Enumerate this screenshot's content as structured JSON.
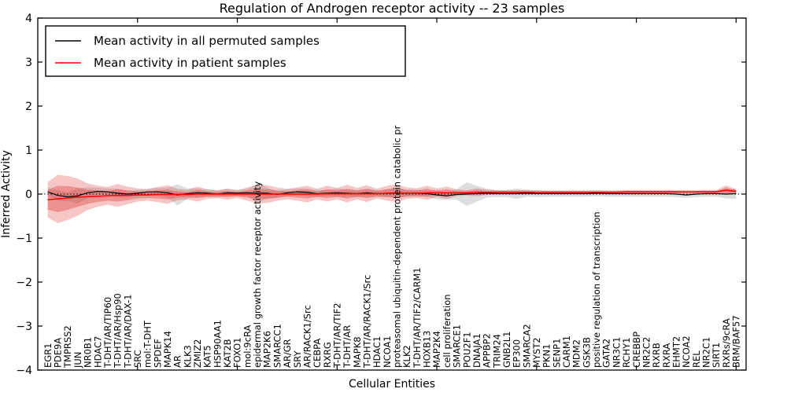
{
  "figure": {
    "background": "#ffffff"
  },
  "chart_data": {
    "type": "line",
    "title": "Regulation of Androgen receptor activity -- 23 samples",
    "xlabel": "Cellular Entities",
    "ylabel": "Inferred Activity",
    "ylim": [
      -4,
      4
    ],
    "yticks": [
      -4,
      -3,
      -2,
      -1,
      0,
      1,
      2,
      3,
      4
    ],
    "xlim": [
      0,
      71
    ],
    "xticks": [
      10,
      20,
      30,
      40,
      50,
      60,
      70
    ],
    "grid": false,
    "zero_line": {
      "y": 0,
      "color": "#000000",
      "style": "dotted"
    },
    "legend": {
      "position": "upper left",
      "entries": [
        {
          "label": "Mean activity in all permuted samples",
          "color": "#000000"
        },
        {
          "label": "Mean activity in patient samples",
          "color": "#ff0000"
        }
      ]
    },
    "categories": [
      "EGR1",
      "PDE9A",
      "TMPRSS2",
      "JUN",
      "NR0B1",
      "HDAC7",
      "T-DHT/AR/TIP60",
      "T-DHT/AR/Hsp90",
      "T-DHT/AR/DAX-1",
      "SRC",
      "mol:T-DHT",
      "SPDEF",
      "MAPK14",
      "AR",
      "KLK3",
      "ZMIZ2",
      "KAT5",
      "HSP90AA1",
      "KAT2B",
      "FOXO1",
      "mol:9cRA",
      "epidermal growth factor receptor activity",
      "MAP2K6",
      "SMARCC1",
      "AR/GR",
      "SRY",
      "AR/RACK1/Src",
      "CEBPA",
      "RXRG",
      "T-DHT/AR/TIF2",
      "T-DHT/AR",
      "MAPK8",
      "T-DHT/AR/RACK1/Src",
      "HDAC1",
      "NCOA1",
      "proteasomal ubiquitin-dependent protein catabolic pr",
      "KLK2",
      "T-DHT/AR/TIF2/CARM1",
      "HOXB13",
      "MAP2K4",
      "cell proliferation",
      "SMARCE1",
      "POU2F1",
      "DNAJA1",
      "APPBP2",
      "TRIM24",
      "GNB2L1",
      "EP300",
      "SMARCA2",
      "MYST2",
      "PKN1",
      "SENP1",
      "CARM1",
      "MDM2",
      "GSK3B",
      "positive regulation of transcription",
      "GATA2",
      "NR3C1",
      "RCHY1",
      "CREBBP",
      "NR2C2",
      "RXRB",
      "RXRA",
      "EHMT2",
      "NCOA2",
      "REL",
      "NR2C1",
      "SIRT1",
      "RXRs/9cRA",
      "BRM/BAF57"
    ],
    "series": [
      {
        "name": "Mean activity in all permuted samples",
        "color": "#000000",
        "values": [
          0.05,
          -0.03,
          -0.06,
          -0.04,
          0.03,
          0.06,
          0.05,
          0.02,
          0.0,
          0.02,
          0.05,
          0.05,
          0.03,
          -0.02,
          0.01,
          0.03,
          0.02,
          0.0,
          0.03,
          0.02,
          0.03,
          0.02,
          0.02,
          -0.01,
          0.03,
          0.05,
          0.04,
          0.01,
          0.02,
          0.03,
          0.02,
          0.01,
          0.03,
          0.01,
          0.02,
          0.03,
          0.02,
          0.02,
          0.01,
          -0.02,
          -0.04,
          -0.01,
          0.0,
          0.01,
          0.02,
          0.01,
          0.01,
          0.01,
          0.02,
          0.01,
          0.01,
          0.01,
          0.01,
          0.01,
          0.01,
          0.02,
          0.01,
          0.01,
          0.01,
          0.01,
          0.01,
          0.01,
          0.01,
          0.0,
          -0.02,
          0.0,
          0.01,
          0.01,
          0.0,
          0.01
        ]
      },
      {
        "name": "Mean activity in patient samples",
        "color": "#ff0000",
        "values": [
          -0.13,
          -0.11,
          -0.09,
          -0.07,
          -0.06,
          -0.05,
          -0.04,
          -0.03,
          -0.03,
          -0.02,
          -0.02,
          -0.01,
          -0.01,
          -0.01,
          -0.01,
          0.0,
          0.0,
          0.0,
          0.0,
          0.0,
          0.0,
          0.0,
          0.0,
          0.0,
          0.0,
          0.0,
          0.0,
          0.0,
          0.01,
          0.01,
          0.01,
          0.01,
          0.01,
          0.01,
          0.02,
          0.02,
          0.02,
          0.02,
          0.03,
          0.03,
          0.03,
          0.03,
          0.03,
          0.04,
          0.04,
          0.04,
          0.04,
          0.04,
          0.04,
          0.04,
          0.04,
          0.04,
          0.04,
          0.04,
          0.04,
          0.04,
          0.04,
          0.04,
          0.05,
          0.05,
          0.05,
          0.05,
          0.05,
          0.05,
          0.05,
          0.05,
          0.05,
          0.05,
          0.09,
          0.06
        ]
      }
    ],
    "bands": [
      {
        "name": "permuted-spread",
        "center_series": 0,
        "color": "#8a8a8a",
        "opacity": 0.28,
        "halfwidths": [
          0.1,
          0.12,
          0.1,
          0.17,
          0.12,
          0.08,
          0.08,
          0.1,
          0.08,
          0.07,
          0.07,
          0.09,
          0.11,
          0.24,
          0.12,
          0.1,
          0.08,
          0.08,
          0.08,
          0.07,
          0.08,
          0.22,
          0.12,
          0.08,
          0.08,
          0.08,
          0.09,
          0.08,
          0.07,
          0.1,
          0.08,
          0.08,
          0.1,
          0.08,
          0.09,
          0.11,
          0.08,
          0.08,
          0.07,
          0.1,
          0.09,
          0.12,
          0.27,
          0.18,
          0.1,
          0.08,
          0.08,
          0.12,
          0.08,
          0.08,
          0.07,
          0.07,
          0.07,
          0.07,
          0.07,
          0.07,
          0.07,
          0.07,
          0.07,
          0.07,
          0.07,
          0.07,
          0.07,
          0.07,
          0.07,
          0.07,
          0.07,
          0.07,
          0.1,
          0.12
        ]
      },
      {
        "name": "patient-spread-outer",
        "center_series": 1,
        "color": "#e03030",
        "opacity": 0.28,
        "halfwidths": [
          0.4,
          0.55,
          0.5,
          0.42,
          0.3,
          0.24,
          0.2,
          0.26,
          0.2,
          0.15,
          0.13,
          0.17,
          0.21,
          0.13,
          0.11,
          0.17,
          0.11,
          0.09,
          0.13,
          0.09,
          0.15,
          0.21,
          0.2,
          0.15,
          0.12,
          0.15,
          0.19,
          0.12,
          0.18,
          0.13,
          0.2,
          0.13,
          0.19,
          0.11,
          0.17,
          0.2,
          0.13,
          0.11,
          0.16,
          0.1,
          0.14,
          0.08,
          0.06,
          0.09,
          0.06,
          0.05,
          0.05,
          0.05,
          0.05,
          0.04,
          0.04,
          0.04,
          0.04,
          0.04,
          0.04,
          0.04,
          0.04,
          0.04,
          0.04,
          0.04,
          0.04,
          0.04,
          0.04,
          0.04,
          0.04,
          0.04,
          0.04,
          0.04,
          0.11,
          0.05
        ]
      },
      {
        "name": "patient-spread-inner",
        "center_series": 1,
        "color": "#e03030",
        "opacity": 0.35,
        "halfwidths": [
          0.22,
          0.3,
          0.27,
          0.22,
          0.16,
          0.13,
          0.11,
          0.14,
          0.11,
          0.08,
          0.07,
          0.09,
          0.11,
          0.07,
          0.06,
          0.09,
          0.06,
          0.05,
          0.07,
          0.05,
          0.08,
          0.11,
          0.11,
          0.08,
          0.06,
          0.08,
          0.1,
          0.06,
          0.1,
          0.07,
          0.11,
          0.07,
          0.1,
          0.06,
          0.09,
          0.11,
          0.07,
          0.06,
          0.09,
          0.05,
          0.08,
          0.04,
          0.03,
          0.05,
          0.03,
          0.03,
          0.03,
          0.03,
          0.03,
          0.02,
          0.02,
          0.02,
          0.02,
          0.02,
          0.02,
          0.02,
          0.02,
          0.02,
          0.02,
          0.02,
          0.02,
          0.02,
          0.02,
          0.02,
          0.02,
          0.02,
          0.02,
          0.02,
          0.06,
          0.03
        ]
      }
    ]
  }
}
